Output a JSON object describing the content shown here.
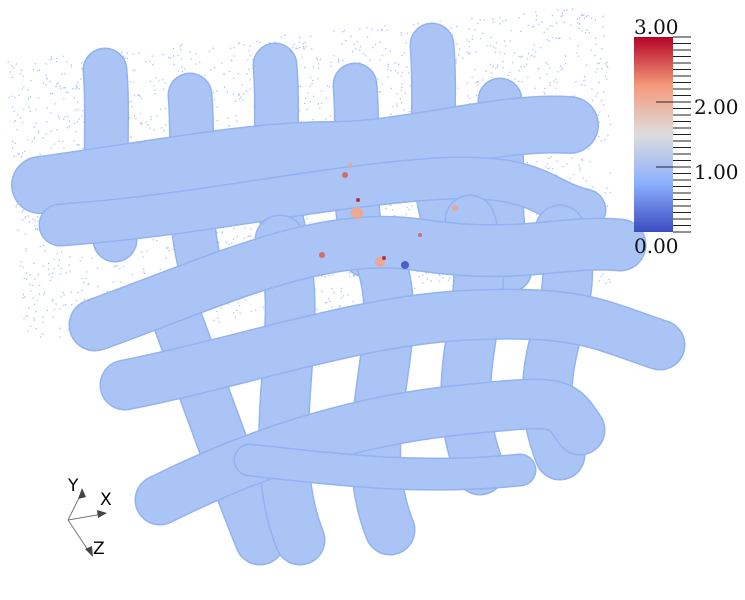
{
  "render_view": {
    "background": "#ffffff",
    "fiber_color": "#aac4f6",
    "fiber_edge_color": "#93b2f0",
    "hotspot_colors": [
      "#f4a582",
      "#d6604d",
      "#b2182b",
      "#3b4cc0"
    ]
  },
  "color_legend": {
    "range": [
      0.0,
      3.0
    ],
    "labels": [
      "3.00",
      "2.00",
      "1.00",
      "0.00"
    ],
    "colormap": "Cool to Warm",
    "stops": [
      "#3b4cc0",
      "#8db0fe",
      "#dddddd",
      "#f49a7b",
      "#b40426"
    ]
  },
  "orientation_axes": {
    "labels": {
      "x": "X",
      "y": "Y",
      "z": "Z"
    }
  }
}
